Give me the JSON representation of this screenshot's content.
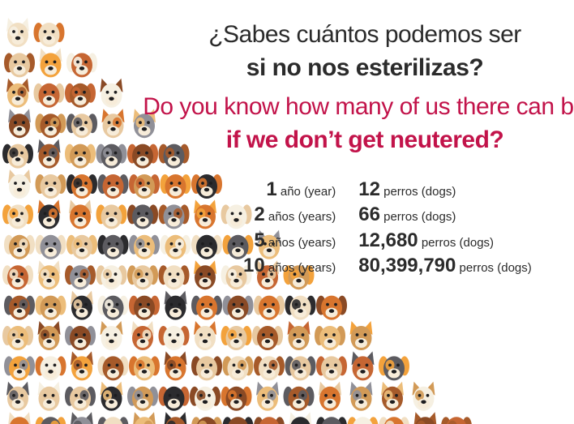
{
  "headline": {
    "es_line1": "¿Sabes cuántos podemos ser",
    "es_line2": "si no nos esterilizas?",
    "en_line1": "Do you know how many of us there can be",
    "en_line2": "if we don’t get neutered?"
  },
  "stats": [
    {
      "years": "1",
      "year_unit": " año (year)",
      "dogs": "12",
      "dog_unit": " perros (dogs)"
    },
    {
      "years": "2",
      "year_unit": " años (years)",
      "dogs": "66",
      "dog_unit": " perros (dogs)"
    },
    {
      "years": "5",
      "year_unit": " años (years)",
      "dogs": "12,680",
      "dog_unit": " perros (dogs)"
    },
    {
      "years": "10",
      "year_unit": " años (years)",
      "dogs": "80,399,790",
      "dog_unit": " perros (dogs)"
    }
  ],
  "colors": {
    "headline_dark": "#2b2b2b",
    "headline_accent": "#c2134a",
    "dog_palette": [
      "#f3a23c",
      "#d8752e",
      "#c66633",
      "#a65a2a",
      "#8a4a25",
      "#e8c9a0",
      "#f1dfc3",
      "#f6f0e2",
      "#909098",
      "#5c5b60",
      "#2b2b2e",
      "#d29a57",
      "#ecbd7a"
    ]
  },
  "illustration": {
    "icon": "dog-face-icon",
    "row_counts": [
      2,
      3,
      4,
      5,
      6,
      7,
      8,
      9,
      10,
      11,
      12,
      13,
      14,
      15
    ]
  }
}
